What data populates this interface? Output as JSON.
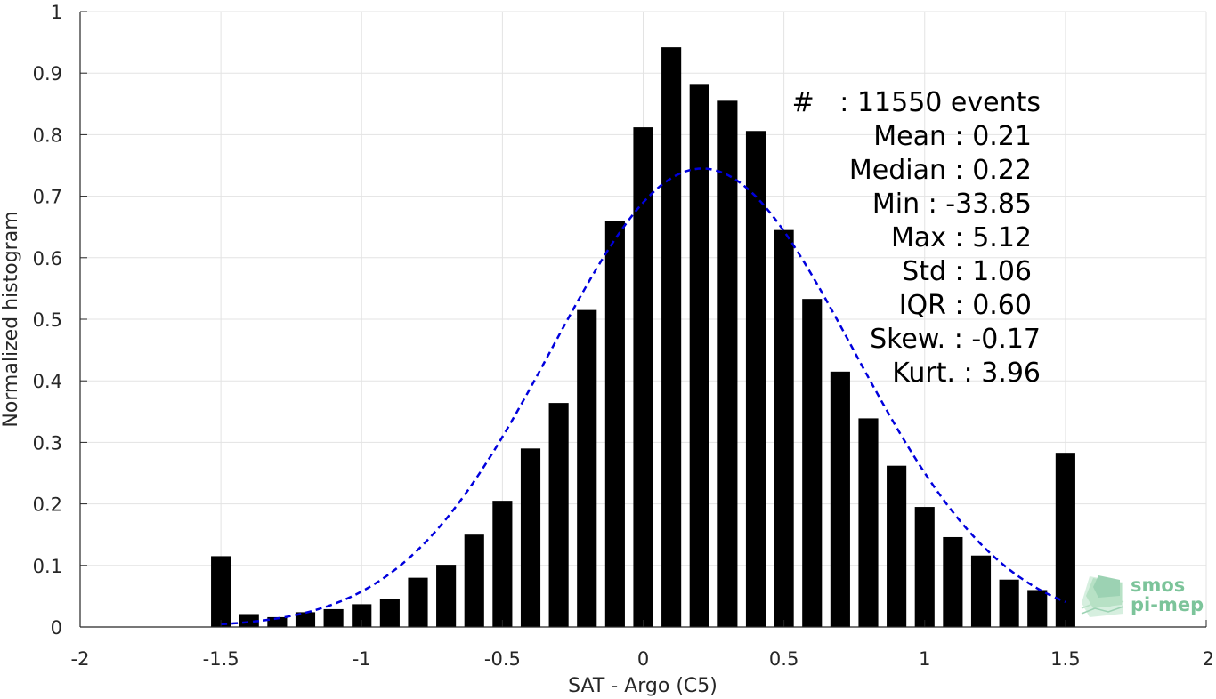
{
  "chart_data": {
    "type": "bar",
    "xlabel": "SAT - Argo (C5)",
    "ylabel": "Normalized histogram",
    "xlim": [
      -2,
      2
    ],
    "ylim": [
      0,
      1
    ],
    "grid": true,
    "x_ticks": [
      -2,
      -1.5,
      -1,
      -0.5,
      0,
      0.5,
      1,
      1.5,
      2
    ],
    "x_tick_labels": [
      "-2",
      "-1.5",
      "-1",
      "-0.5",
      "0",
      "0.5",
      "1",
      "1.5",
      "2"
    ],
    "y_ticks": [
      0,
      0.1,
      0.2,
      0.3,
      0.4,
      0.5,
      0.6,
      0.7,
      0.8,
      0.9,
      1
    ],
    "y_tick_labels": [
      "0",
      "0.1",
      "0.2",
      "0.3",
      "0.4",
      "0.5",
      "0.6",
      "0.7",
      "0.8",
      "0.9",
      "1"
    ],
    "bar_color": "#000000",
    "curve_color": "#0000dd",
    "bar_width": 0.07,
    "bars": [
      {
        "x": -1.5,
        "y": 0.115
      },
      {
        "x": -1.4,
        "y": 0.021
      },
      {
        "x": -1.3,
        "y": 0.016
      },
      {
        "x": -1.2,
        "y": 0.024
      },
      {
        "x": -1.1,
        "y": 0.029
      },
      {
        "x": -1.0,
        "y": 0.037
      },
      {
        "x": -0.9,
        "y": 0.045
      },
      {
        "x": -0.8,
        "y": 0.08
      },
      {
        "x": -0.7,
        "y": 0.101
      },
      {
        "x": -0.6,
        "y": 0.15
      },
      {
        "x": -0.5,
        "y": 0.205
      },
      {
        "x": -0.4,
        "y": 0.29
      },
      {
        "x": -0.3,
        "y": 0.364
      },
      {
        "x": -0.2,
        "y": 0.515
      },
      {
        "x": -0.1,
        "y": 0.659
      },
      {
        "x": 0.0,
        "y": 0.812
      },
      {
        "x": 0.1,
        "y": 0.942
      },
      {
        "x": 0.2,
        "y": 0.881
      },
      {
        "x": 0.3,
        "y": 0.855
      },
      {
        "x": 0.4,
        "y": 0.806
      },
      {
        "x": 0.5,
        "y": 0.645
      },
      {
        "x": 0.6,
        "y": 0.533
      },
      {
        "x": 0.7,
        "y": 0.415
      },
      {
        "x": 0.8,
        "y": 0.339
      },
      {
        "x": 0.9,
        "y": 0.262
      },
      {
        "x": 1.0,
        "y": 0.195
      },
      {
        "x": 1.1,
        "y": 0.146
      },
      {
        "x": 1.2,
        "y": 0.116
      },
      {
        "x": 1.3,
        "y": 0.077
      },
      {
        "x": 1.4,
        "y": 0.06
      },
      {
        "x": 1.5,
        "y": 0.283
      }
    ],
    "fit_curve": {
      "style": "dashed",
      "mean": 0.21,
      "std": 0.535,
      "peak": 0.745,
      "x_range": [
        -1.5,
        1.5
      ]
    }
  },
  "stats": {
    "lines": [
      "#   : 11550 events",
      "Mean : 0.21",
      "Median : 0.22",
      "Min : -33.85",
      "Max : 5.12",
      "Std : 1.06",
      "IQR : 0.60",
      "Skew. : -0.17",
      "Kurt. : 3.96"
    ]
  },
  "logo": {
    "line1": "smos",
    "line2": "pi-mep"
  }
}
